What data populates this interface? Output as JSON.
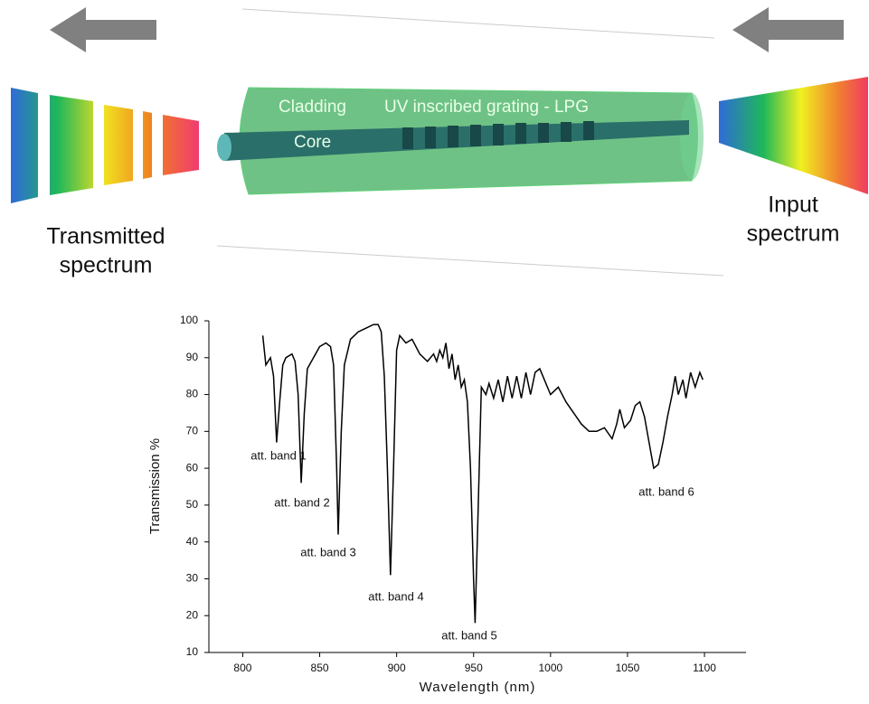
{
  "diagram": {
    "cladding_label": "Cladding",
    "grating_label": "UV inscribed grating - LPG",
    "core_label": "Core",
    "transmitted_label": [
      "Transmitted",
      "spectrum"
    ],
    "input_label": [
      "Input",
      "spectrum"
    ]
  },
  "chart_data": {
    "type": "line",
    "x_label": "Wavelength (nm)",
    "y_label": "Transmission %",
    "color": "#000000",
    "xlim": [
      778,
      1127
    ],
    "ylim": [
      10,
      100
    ],
    "xticks": [
      800,
      850,
      900,
      950,
      1000,
      1050,
      1100
    ],
    "yticks": [
      10,
      20,
      30,
      40,
      50,
      60,
      70,
      80,
      90,
      100
    ],
    "x": [
      813,
      815,
      818,
      820,
      822,
      824,
      826,
      828,
      832,
      834,
      836,
      838,
      840,
      842,
      846,
      850,
      854,
      857,
      859,
      861,
      862,
      864,
      866,
      870,
      875,
      880,
      885,
      888,
      890,
      892,
      894,
      896,
      898,
      900,
      902,
      906,
      910,
      915,
      920,
      924,
      926,
      928,
      930,
      932,
      934,
      936,
      938,
      940,
      942,
      944,
      946,
      948,
      950,
      951,
      953,
      955,
      958,
      960,
      963,
      966,
      969,
      972,
      975,
      978,
      981,
      984,
      987,
      990,
      993,
      996,
      1000,
      1005,
      1010,
      1015,
      1020,
      1025,
      1030,
      1035,
      1040,
      1043,
      1045,
      1048,
      1052,
      1055,
      1058,
      1061,
      1064,
      1067,
      1070,
      1073,
      1076,
      1079,
      1081,
      1083,
      1086,
      1088,
      1091,
      1094,
      1097,
      1099
    ],
    "values": [
      96,
      88,
      90,
      85,
      67,
      78,
      88,
      90,
      91,
      89,
      80,
      56,
      75,
      87,
      90,
      93,
      94,
      93,
      88,
      60,
      42,
      70,
      88,
      95,
      97,
      98,
      99,
      99,
      97,
      85,
      60,
      31,
      60,
      92,
      96,
      94,
      95,
      91,
      89,
      91,
      89,
      92,
      90,
      94,
      87,
      91,
      84,
      88,
      82,
      84,
      78,
      60,
      30,
      18,
      50,
      82,
      80,
      83,
      79,
      84,
      78,
      85,
      79,
      85,
      79,
      86,
      80,
      86,
      87,
      84,
      80,
      82,
      78,
      75,
      72,
      70,
      70,
      71,
      68,
      72,
      76,
      71,
      73,
      77,
      78,
      74,
      67,
      60,
      61,
      67,
      74,
      80,
      85,
      80,
      84,
      79,
      86,
      82,
      86,
      84
    ],
    "annotations": [
      "att. band 1",
      "att. band 2",
      "att. band 3",
      "att. band 4",
      "att. band 5",
      "att. band 6"
    ]
  }
}
